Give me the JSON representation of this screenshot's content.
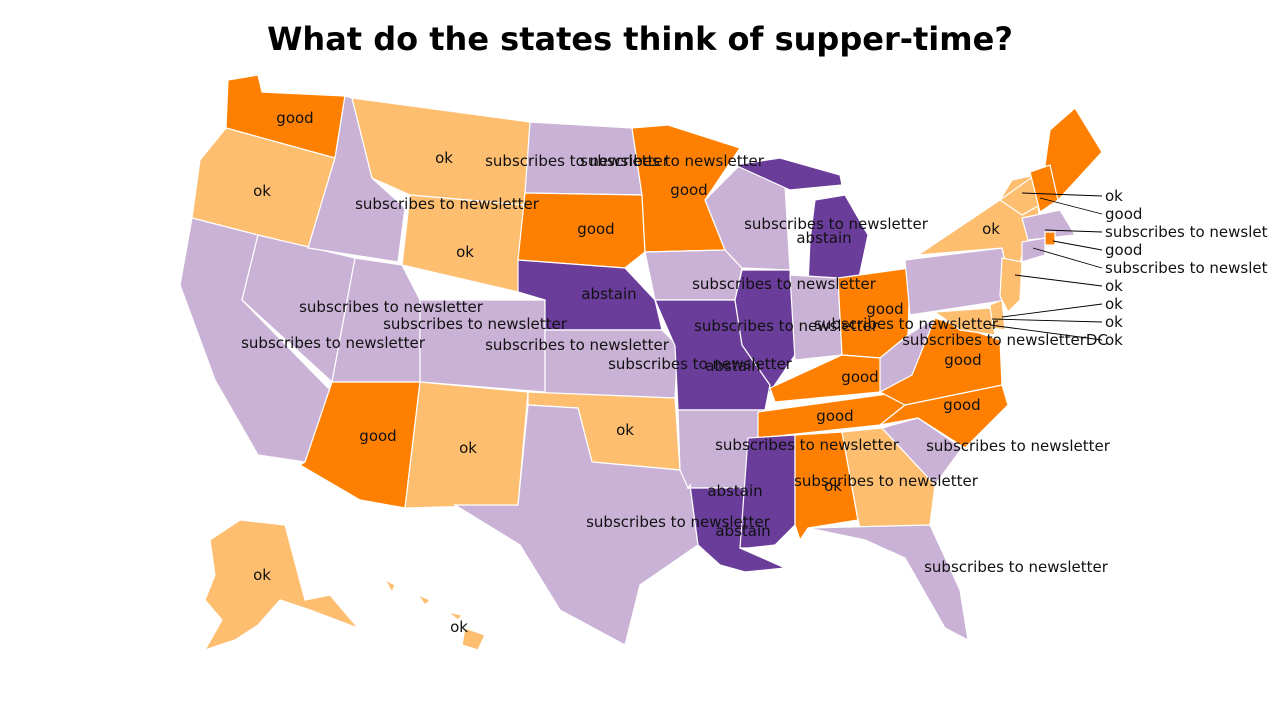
{
  "title": "What do the states think of supper-time?",
  "colors": {
    "good": "#ff8000",
    "ok": "#fdbe6f",
    "abstain": "#6a3d9a",
    "subscribes to newsletter": "#cab2d6"
  },
  "states": [
    {
      "id": "WA",
      "value": "good"
    },
    {
      "id": "OR",
      "value": "ok"
    },
    {
      "id": "CA",
      "value": "subscribes to newsletter"
    },
    {
      "id": "NV",
      "value": "subscribes to newsletter"
    },
    {
      "id": "ID",
      "value": "subscribes to newsletter"
    },
    {
      "id": "MT",
      "value": "ok"
    },
    {
      "id": "WY",
      "value": "ok"
    },
    {
      "id": "UT",
      "value": "subscribes to newsletter"
    },
    {
      "id": "AZ",
      "value": "good"
    },
    {
      "id": "CO",
      "value": "subscribes to newsletter"
    },
    {
      "id": "NM",
      "value": "ok"
    },
    {
      "id": "ND",
      "value": "subscribes to newsletter"
    },
    {
      "id": "SD",
      "value": "good"
    },
    {
      "id": "NE",
      "value": "abstain"
    },
    {
      "id": "KS",
      "value": "subscribes to newsletter"
    },
    {
      "id": "OK",
      "value": "ok"
    },
    {
      "id": "TX",
      "value": "subscribes to newsletter"
    },
    {
      "id": "MN",
      "value": "good"
    },
    {
      "id": "IA",
      "value": "subscribes to newsletter"
    },
    {
      "id": "MO",
      "value": "abstain"
    },
    {
      "id": "AR",
      "value": "subscribes to newsletter"
    },
    {
      "id": "LA",
      "value": "abstain"
    },
    {
      "id": "WI",
      "value": "subscribes to newsletter"
    },
    {
      "id": "IL",
      "value": "abstain"
    },
    {
      "id": "MI",
      "value": "abstain"
    },
    {
      "id": "IN",
      "value": "subscribes to newsletter"
    },
    {
      "id": "OH",
      "value": "good"
    },
    {
      "id": "KY",
      "value": "good"
    },
    {
      "id": "TN",
      "value": "good"
    },
    {
      "id": "MS",
      "value": "abstain"
    },
    {
      "id": "AL",
      "value": "good"
    },
    {
      "id": "GA",
      "value": "ok"
    },
    {
      "id": "FL",
      "value": "subscribes to newsletter"
    },
    {
      "id": "SC",
      "value": "subscribes to newsletter"
    },
    {
      "id": "NC",
      "value": "good"
    },
    {
      "id": "VA",
      "value": "good"
    },
    {
      "id": "WV",
      "value": "subscribes to newsletter"
    },
    {
      "id": "PA",
      "value": "subscribes to newsletter"
    },
    {
      "id": "NY",
      "value": "ok"
    },
    {
      "id": "ME",
      "value": "good"
    },
    {
      "id": "AK",
      "value": "ok"
    },
    {
      "id": "HI",
      "value": "ok"
    }
  ],
  "inline_labels": [
    "good",
    "ok",
    "subscribes to newsletter",
    "subscribes to newsletter",
    "subscribes to newsletter",
    "ok",
    "subscribes to newsletter",
    "ok",
    "subscribes to newsletter",
    "good",
    "subscribes to newsletter",
    "ok",
    "subscribes to newsletter",
    "good",
    "abstain",
    "subscribes to newsletter",
    "ok",
    "subscribes to newsletter",
    "good",
    "subscribes to newsletter",
    "abstain",
    "subscribes to newsletter",
    "abstain",
    "abstain",
    "abstain",
    "subscribes to newsletter",
    "good",
    "good",
    "subscribes to newsletter",
    "good",
    "ok",
    "subscribes to newsletter",
    "subscribes to newsletter",
    "good",
    "subscribes to newsletter",
    "subscribes to newsletter",
    "ok",
    "good",
    "ok",
    "ok",
    "subscribes to newsletterDC"
  ],
  "callout_labels": [
    "ok",
    "good",
    "subscribes to newslet",
    "good",
    "subscribes to newslet",
    "ok",
    "ok",
    "ok",
    "ok"
  ]
}
